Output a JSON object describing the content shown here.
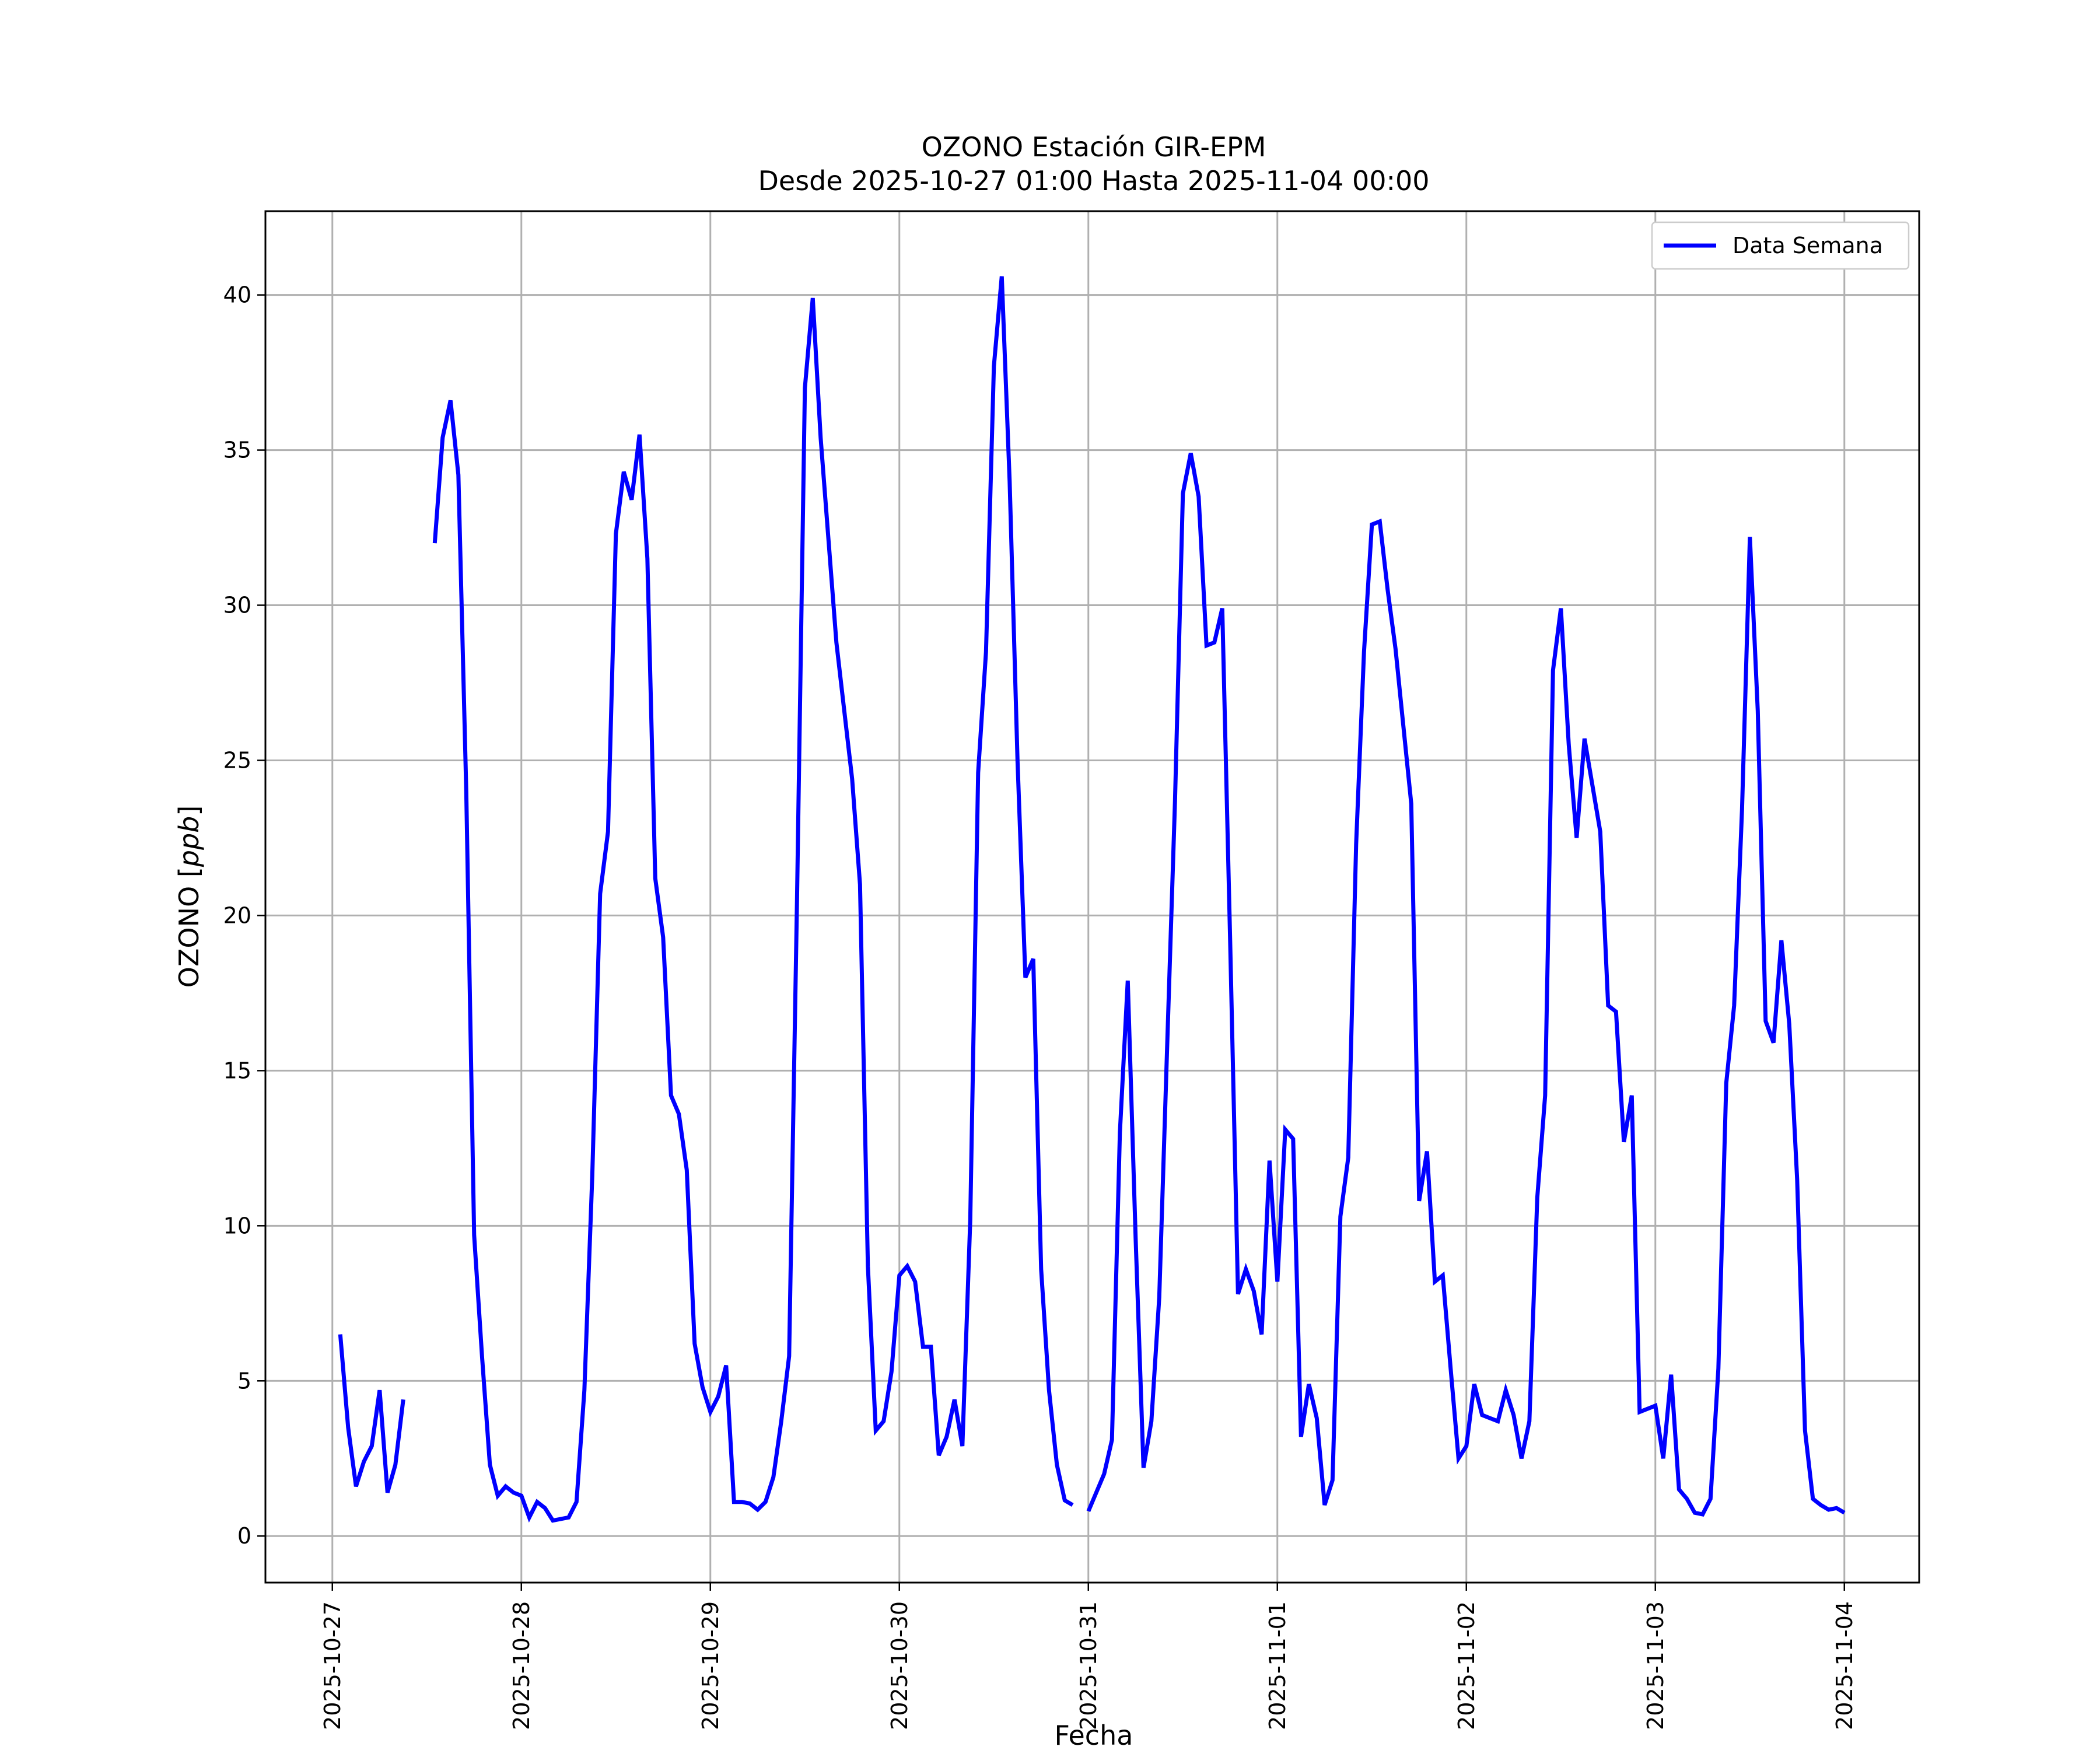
{
  "chart_data": {
    "type": "line",
    "title": "OZONO Estación GIR-EPM",
    "subtitle": "Desde 2025-10-27 01:00 Hasta 2025-11-04 00:00",
    "xlabel": "Fecha",
    "ylabel_main": "OZONO",
    "ylabel_unit": "ppb",
    "x_ticks": [
      "2025-10-27",
      "2025-10-28",
      "2025-10-29",
      "2025-10-30",
      "2025-10-31",
      "2025-11-01",
      "2025-11-02",
      "2025-11-03",
      "2025-11-04"
    ],
    "y_ticks": [
      0,
      5,
      10,
      15,
      20,
      25,
      30,
      35,
      40
    ],
    "xlim": [
      "2025-10-26 15:30",
      "2025-11-04 09:30"
    ],
    "ylim": [
      -1.5,
      42.7
    ],
    "grid": true,
    "legend_position": "top-right",
    "series": [
      {
        "name": "Data Semana",
        "color": "#0000ff",
        "segments": [
          [
            [
              "2025-10-27 01:00",
              6.5
            ],
            [
              "2025-10-27 02:00",
              3.5
            ],
            [
              "2025-10-27 03:00",
              1.6
            ],
            [
              "2025-10-27 04:00",
              2.4
            ],
            [
              "2025-10-27 05:00",
              2.9
            ],
            [
              "2025-10-27 06:00",
              4.7
            ],
            [
              "2025-10-27 07:00",
              1.4
            ],
            [
              "2025-10-27 08:00",
              2.3
            ],
            [
              "2025-10-27 09:00",
              4.4
            ]
          ],
          [
            [
              "2025-10-27 13:00",
              32.0
            ],
            [
              "2025-10-27 14:00",
              35.4
            ],
            [
              "2025-10-27 15:00",
              36.6
            ],
            [
              "2025-10-27 16:00",
              34.2
            ],
            [
              "2025-10-27 17:00",
              24.0
            ],
            [
              "2025-10-27 18:00",
              9.7
            ],
            [
              "2025-10-27 19:00",
              5.8
            ],
            [
              "2025-10-27 20:00",
              2.3
            ],
            [
              "2025-10-27 21:00",
              1.3
            ],
            [
              "2025-10-27 22:00",
              1.6
            ],
            [
              "2025-10-27 23:00",
              1.4
            ],
            [
              "2025-10-28 00:00",
              1.3
            ],
            [
              "2025-10-28 01:00",
              0.6
            ],
            [
              "2025-10-28 02:00",
              1.1
            ],
            [
              "2025-10-28 03:00",
              0.9
            ],
            [
              "2025-10-28 04:00",
              0.5
            ],
            [
              "2025-10-28 05:00",
              0.55
            ],
            [
              "2025-10-28 06:00",
              0.6
            ],
            [
              "2025-10-28 07:00",
              1.1
            ],
            [
              "2025-10-28 08:00",
              4.7
            ],
            [
              "2025-10-28 09:00",
              11.6
            ],
            [
              "2025-10-28 10:00",
              20.7
            ],
            [
              "2025-10-28 11:00",
              22.7
            ],
            [
              "2025-10-28 12:00",
              32.3
            ],
            [
              "2025-10-28 13:00",
              34.3
            ],
            [
              "2025-10-28 14:00",
              33.4
            ],
            [
              "2025-10-28 15:00",
              35.5
            ],
            [
              "2025-10-28 16:00",
              31.5
            ],
            [
              "2025-10-28 17:00",
              21.2
            ],
            [
              "2025-10-28 18:00",
              19.3
            ],
            [
              "2025-10-28 19:00",
              14.2
            ],
            [
              "2025-10-28 20:00",
              13.6
            ],
            [
              "2025-10-28 21:00",
              11.8
            ],
            [
              "2025-10-28 22:00",
              6.2
            ],
            [
              "2025-10-28 23:00",
              4.8
            ],
            [
              "2025-10-29 00:00",
              4.0
            ],
            [
              "2025-10-29 01:00",
              4.5
            ],
            [
              "2025-10-29 02:00",
              5.5
            ],
            [
              "2025-10-29 03:00",
              1.1
            ],
            [
              "2025-10-29 04:00",
              1.1
            ],
            [
              "2025-10-29 05:00",
              1.05
            ],
            [
              "2025-10-29 06:00",
              0.85
            ],
            [
              "2025-10-29 07:00",
              1.1
            ],
            [
              "2025-10-29 08:00",
              1.9
            ],
            [
              "2025-10-29 09:00",
              3.7
            ],
            [
              "2025-10-29 10:00",
              5.8
            ],
            [
              "2025-10-29 11:00",
              20.5
            ],
            [
              "2025-10-29 12:00",
              37.0
            ],
            [
              "2025-10-29 13:00",
              39.9
            ],
            [
              "2025-10-29 14:00",
              35.4
            ],
            [
              "2025-10-29 15:00",
              32.1
            ],
            [
              "2025-10-29 16:00",
              28.8
            ],
            [
              "2025-10-29 17:00",
              26.6
            ],
            [
              "2025-10-29 18:00",
              24.4
            ],
            [
              "2025-10-29 19:00",
              21.0
            ],
            [
              "2025-10-29 20:00",
              8.7
            ],
            [
              "2025-10-29 21:00",
              3.4
            ],
            [
              "2025-10-29 22:00",
              3.7
            ],
            [
              "2025-10-29 23:00",
              5.3
            ],
            [
              "2025-10-30 00:00",
              8.4
            ],
            [
              "2025-10-30 01:00",
              8.7
            ],
            [
              "2025-10-30 02:00",
              8.2
            ],
            [
              "2025-10-30 03:00",
              6.1
            ],
            [
              "2025-10-30 04:00",
              6.1
            ],
            [
              "2025-10-30 05:00",
              2.6
            ],
            [
              "2025-10-30 06:00",
              3.2
            ],
            [
              "2025-10-30 07:00",
              4.4
            ],
            [
              "2025-10-30 08:00",
              2.9
            ],
            [
              "2025-10-30 09:00",
              10.2
            ],
            [
              "2025-10-30 10:00",
              24.6
            ],
            [
              "2025-10-30 11:00",
              28.5
            ],
            [
              "2025-10-30 12:00",
              37.7
            ],
            [
              "2025-10-30 13:00",
              40.6
            ],
            [
              "2025-10-30 14:00",
              34.0
            ],
            [
              "2025-10-30 15:00",
              25.0
            ],
            [
              "2025-10-30 16:00",
              18.0
            ],
            [
              "2025-10-30 17:00",
              18.6
            ],
            [
              "2025-10-30 18:00",
              8.6
            ],
            [
              "2025-10-30 19:00",
              4.7
            ],
            [
              "2025-10-30 20:00",
              2.3
            ],
            [
              "2025-10-30 21:00",
              1.15
            ],
            [
              "2025-10-30 22:00",
              1.0
            ]
          ],
          [
            [
              "2025-10-31 00:00",
              0.8
            ],
            [
              "2025-10-31 01:00",
              1.4
            ],
            [
              "2025-10-31 02:00",
              2.0
            ],
            [
              "2025-10-31 03:00",
              3.1
            ],
            [
              "2025-10-31 04:00",
              13.0
            ],
            [
              "2025-10-31 05:00",
              17.9
            ],
            [
              "2025-10-31 06:00",
              9.6
            ],
            [
              "2025-10-31 07:00",
              2.2
            ],
            [
              "2025-10-31 08:00",
              3.7
            ],
            [
              "2025-10-31 09:00",
              7.7
            ],
            [
              "2025-10-31 10:00",
              15.7
            ],
            [
              "2025-10-31 11:00",
              23.7
            ],
            [
              "2025-10-31 12:00",
              33.6
            ],
            [
              "2025-10-31 13:00",
              34.9
            ],
            [
              "2025-10-31 14:00",
              33.5
            ],
            [
              "2025-10-31 15:00",
              28.7
            ],
            [
              "2025-10-31 16:00",
              28.8
            ],
            [
              "2025-10-31 17:00",
              29.9
            ],
            [
              "2025-10-31 18:00",
              19.2
            ],
            [
              "2025-10-31 19:00",
              7.8
            ],
            [
              "2025-10-31 20:00",
              8.6
            ],
            [
              "2025-10-31 21:00",
              7.9
            ],
            [
              "2025-10-31 22:00",
              6.5
            ],
            [
              "2025-10-31 23:00",
              12.1
            ],
            [
              "2025-11-01 00:00",
              8.2
            ],
            [
              "2025-11-01 01:00",
              13.1
            ],
            [
              "2025-11-01 02:00",
              12.8
            ],
            [
              "2025-11-01 03:00",
              3.2
            ],
            [
              "2025-11-01 04:00",
              4.9
            ],
            [
              "2025-11-01 05:00",
              3.8
            ],
            [
              "2025-11-01 06:00",
              1.0
            ],
            [
              "2025-11-01 07:00",
              1.8
            ],
            [
              "2025-11-01 08:00",
              10.3
            ],
            [
              "2025-11-01 09:00",
              12.2
            ],
            [
              "2025-11-01 10:00",
              22.3
            ],
            [
              "2025-11-01 11:00",
              28.5
            ],
            [
              "2025-11-01 12:00",
              32.6
            ],
            [
              "2025-11-01 13:00",
              32.7
            ],
            [
              "2025-11-01 14:00",
              30.5
            ],
            [
              "2025-11-01 15:00",
              28.6
            ],
            [
              "2025-11-01 16:00",
              26.1
            ],
            [
              "2025-11-01 17:00",
              23.6
            ],
            [
              "2025-11-01 18:00",
              10.8
            ],
            [
              "2025-11-01 19:00",
              12.4
            ],
            [
              "2025-11-01 20:00",
              8.2
            ],
            [
              "2025-11-01 21:00",
              8.4
            ],
            [
              "2025-11-01 22:00",
              5.4
            ],
            [
              "2025-11-01 23:00",
              2.5
            ],
            [
              "2025-11-02 00:00",
              2.9
            ],
            [
              "2025-11-02 01:00",
              4.9
            ],
            [
              "2025-11-02 02:00",
              3.9
            ],
            [
              "2025-11-02 03:00",
              3.8
            ],
            [
              "2025-11-02 04:00",
              3.7
            ],
            [
              "2025-11-02 05:00",
              4.7
            ],
            [
              "2025-11-02 06:00",
              3.9
            ],
            [
              "2025-11-02 07:00",
              2.5
            ],
            [
              "2025-11-02 08:00",
              3.7
            ],
            [
              "2025-11-02 09:00",
              10.9
            ],
            [
              "2025-11-02 10:00",
              14.2
            ],
            [
              "2025-11-02 11:00",
              27.9
            ],
            [
              "2025-11-02 12:00",
              29.9
            ],
            [
              "2025-11-02 13:00",
              25.5
            ],
            [
              "2025-11-02 14:00",
              22.5
            ],
            [
              "2025-11-02 15:00",
              25.7
            ],
            [
              "2025-11-02 16:00",
              24.2
            ],
            [
              "2025-11-02 17:00",
              22.7
            ],
            [
              "2025-11-02 18:00",
              17.1
            ],
            [
              "2025-11-02 19:00",
              16.9
            ],
            [
              "2025-11-02 20:00",
              12.7
            ],
            [
              "2025-11-02 21:00",
              14.2
            ],
            [
              "2025-11-02 22:00",
              4.0
            ],
            [
              "2025-11-02 23:00",
              4.1
            ],
            [
              "2025-11-03 00:00",
              4.2
            ],
            [
              "2025-11-03 01:00",
              2.5
            ],
            [
              "2025-11-03 02:00",
              5.2
            ],
            [
              "2025-11-03 03:00",
              1.5
            ],
            [
              "2025-11-03 04:00",
              1.2
            ],
            [
              "2025-11-03 05:00",
              0.75
            ],
            [
              "2025-11-03 06:00",
              0.7
            ],
            [
              "2025-11-03 07:00",
              1.2
            ],
            [
              "2025-11-03 08:00",
              5.4
            ],
            [
              "2025-11-03 09:00",
              14.6
            ],
            [
              "2025-11-03 10:00",
              17.1
            ],
            [
              "2025-11-03 11:00",
              23.4
            ],
            [
              "2025-11-03 12:00",
              32.2
            ],
            [
              "2025-11-03 13:00",
              26.6
            ],
            [
              "2025-11-03 14:00",
              16.6
            ],
            [
              "2025-11-03 15:00",
              15.9
            ],
            [
              "2025-11-03 16:00",
              19.2
            ],
            [
              "2025-11-03 17:00",
              16.5
            ],
            [
              "2025-11-03 18:00",
              11.5
            ],
            [
              "2025-11-03 19:00",
              3.4
            ],
            [
              "2025-11-03 20:00",
              1.2
            ],
            [
              "2025-11-03 21:00",
              1.0
            ],
            [
              "2025-11-03 22:00",
              0.85
            ],
            [
              "2025-11-03 23:00",
              0.9
            ],
            [
              "2025-11-04 00:00",
              0.75
            ]
          ]
        ]
      }
    ]
  }
}
